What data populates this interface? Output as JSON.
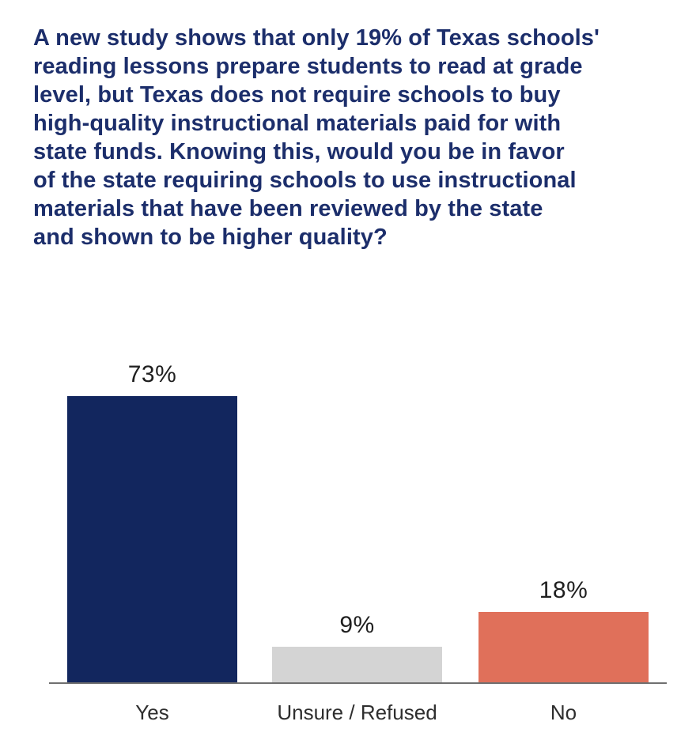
{
  "header": {
    "question_lines": [
      "A new study shows that only 19% of Texas schools'",
      "reading lessons prepare students to read at grade",
      "level, but Texas does not require schools to buy",
      "high-quality instructional materials paid for with",
      "state funds. Knowing this, would you be in favor",
      "of the state requiring schools to use instructional",
      "materials that have been reviewed by the state",
      "and shown to be higher quality?"
    ]
  },
  "chart_data": {
    "type": "bar",
    "title": "A new study shows that only 19% of Texas schools' reading lessons prepare students to read at grade level, but Texas does not require schools to buy high-quality instructional materials paid for with state funds. Knowing this, would you be in favor of the state requiring schools to use instructional materials that have been reviewed by the state and shown to be higher quality?",
    "categories": [
      "Yes",
      "Unsure / Refused",
      "No"
    ],
    "values": [
      73,
      9,
      18
    ],
    "value_labels": [
      "73%",
      "9%",
      "18%"
    ],
    "bar_colors": [
      "#12265e",
      "#d4d4d4",
      "#e0705a"
    ],
    "xlabel": "",
    "ylabel": "",
    "ylim": [
      0,
      80
    ],
    "grid": false,
    "legend": "none",
    "colors": {
      "title_navy": "#1c2e6b",
      "bar_navy": "#12265e",
      "bar_gray": "#d4d4d4",
      "bar_coral": "#e0705a",
      "axis_gray": "#6f6f6f",
      "value_label": "#1f1f1f",
      "category_label": "#2e2e2e"
    }
  }
}
